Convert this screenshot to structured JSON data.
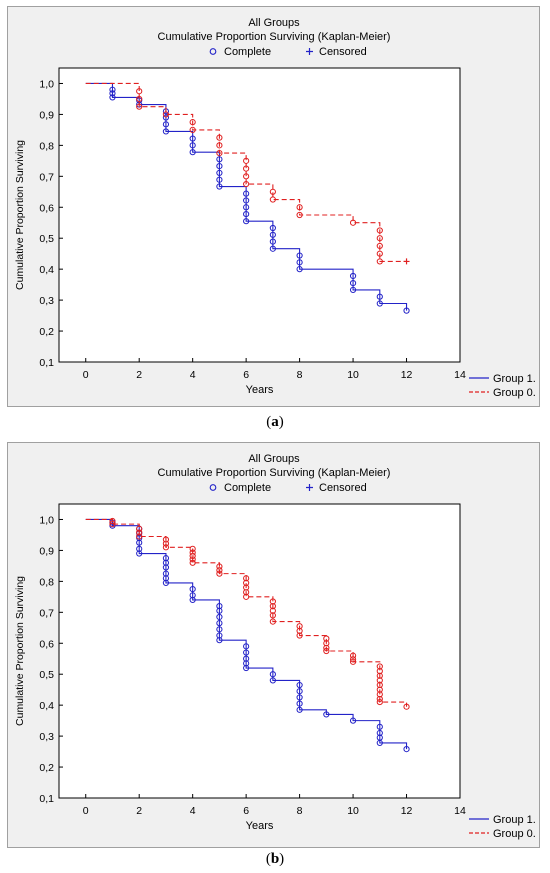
{
  "captions": {
    "a": "a",
    "b": "b"
  },
  "colors": {
    "group1": "#2323c8",
    "group0": "#e02020"
  },
  "chart_data": [
    {
      "type": "line",
      "title": "All Groups",
      "subtitle": "Cumulative Proportion Surviving (Kaplan-Meier)",
      "marker_legend": [
        {
          "label": "Complete",
          "symbol": "circle"
        },
        {
          "label": "Censored",
          "symbol": "plus"
        }
      ],
      "xlabel": "Years",
      "ylabel": "Cumulative Proportion Surviving",
      "xlim": [
        -1,
        14
      ],
      "ylim": [
        0.1,
        1.05
      ],
      "xticks": [
        0,
        2,
        4,
        6,
        8,
        10,
        12,
        14
      ],
      "yticks": [
        1.0,
        0.9,
        0.8,
        0.7,
        0.6,
        0.5,
        0.4,
        0.3,
        0.2,
        0.1
      ],
      "ytick_labels": [
        "1,0",
        "0,9",
        "0,8",
        "0,7",
        "0,6",
        "0,5",
        "0,4",
        "0,3",
        "0,2",
        "0,1"
      ],
      "legend_position": "bottom-right",
      "series": [
        {
          "name": "Group 1.",
          "style": "solid",
          "steps": [
            [
              0,
              1.0
            ],
            [
              1,
              0.955
            ],
            [
              2,
              0.932
            ],
            [
              3,
              0.845
            ],
            [
              4,
              0.778
            ],
            [
              5,
              0.667
            ],
            [
              6,
              0.555
            ],
            [
              7,
              0.466
            ],
            [
              8,
              0.4
            ],
            [
              10,
              0.333
            ],
            [
              11,
              0.289
            ],
            [
              12,
              0.266
            ]
          ],
          "complete_markers": [
            [
              1,
              0.98
            ],
            [
              1,
              0.968
            ],
            [
              1,
              0.955
            ],
            [
              2,
              0.945
            ],
            [
              2,
              0.932
            ],
            [
              3,
              0.91
            ],
            [
              3,
              0.89
            ],
            [
              3,
              0.868
            ],
            [
              3,
              0.845
            ],
            [
              4,
              0.822
            ],
            [
              4,
              0.8
            ],
            [
              4,
              0.778
            ],
            [
              5,
              0.755
            ],
            [
              5,
              0.733
            ],
            [
              5,
              0.711
            ],
            [
              5,
              0.689
            ],
            [
              5,
              0.667
            ],
            [
              6,
              0.644
            ],
            [
              6,
              0.622
            ],
            [
              6,
              0.6
            ],
            [
              6,
              0.578
            ],
            [
              6,
              0.555
            ],
            [
              7,
              0.533
            ],
            [
              7,
              0.511
            ],
            [
              7,
              0.489
            ],
            [
              7,
              0.466
            ],
            [
              8,
              0.444
            ],
            [
              8,
              0.422
            ],
            [
              8,
              0.4
            ],
            [
              10,
              0.378
            ],
            [
              10,
              0.355
            ],
            [
              10,
              0.333
            ],
            [
              11,
              0.311
            ],
            [
              11,
              0.289
            ],
            [
              12,
              0.266
            ]
          ],
          "censored_markers": []
        },
        {
          "name": "Group 0.",
          "style": "dashed",
          "steps": [
            [
              0,
              1.0
            ],
            [
              2,
              0.925
            ],
            [
              3,
              0.9
            ],
            [
              4,
              0.85
            ],
            [
              5,
              0.775
            ],
            [
              6,
              0.675
            ],
            [
              7,
              0.625
            ],
            [
              8,
              0.575
            ],
            [
              10,
              0.55
            ],
            [
              11,
              0.425
            ],
            [
              12,
              0.425
            ]
          ],
          "complete_markers": [
            [
              2,
              0.975
            ],
            [
              2,
              0.95
            ],
            [
              2,
              0.925
            ],
            [
              3,
              0.9
            ],
            [
              4,
              0.875
            ],
            [
              4,
              0.85
            ],
            [
              5,
              0.825
            ],
            [
              5,
              0.8
            ],
            [
              5,
              0.775
            ],
            [
              6,
              0.75
            ],
            [
              6,
              0.725
            ],
            [
              6,
              0.7
            ],
            [
              6,
              0.675
            ],
            [
              7,
              0.65
            ],
            [
              7,
              0.625
            ],
            [
              8,
              0.6
            ],
            [
              8,
              0.575
            ],
            [
              10,
              0.55
            ],
            [
              11,
              0.525
            ],
            [
              11,
              0.5
            ],
            [
              11,
              0.475
            ],
            [
              11,
              0.45
            ],
            [
              11,
              0.425
            ]
          ],
          "censored_markers": [
            [
              12,
              0.425
            ]
          ]
        }
      ]
    },
    {
      "type": "line",
      "title": "All Groups",
      "subtitle": "Cumulative Proportion Surviving (Kaplan-Meier)",
      "marker_legend": [
        {
          "label": "Complete",
          "symbol": "circle"
        },
        {
          "label": "Censored",
          "symbol": "plus"
        }
      ],
      "xlabel": "Years",
      "ylabel": "Cumulative Proportion Surviving",
      "xlim": [
        -1,
        14
      ],
      "ylim": [
        0.1,
        1.05
      ],
      "xticks": [
        0,
        2,
        4,
        6,
        8,
        10,
        12,
        14
      ],
      "yticks": [
        1.0,
        0.9,
        0.8,
        0.7,
        0.6,
        0.5,
        0.4,
        0.3,
        0.2,
        0.1
      ],
      "ytick_labels": [
        "1,0",
        "0,9",
        "0,8",
        "0,7",
        "0,6",
        "0,5",
        "0,4",
        "0,3",
        "0,2",
        "0,1"
      ],
      "legend_position": "bottom-right",
      "series": [
        {
          "name": "Group 1.",
          "style": "solid",
          "steps": [
            [
              0,
              1.0
            ],
            [
              1,
              0.98
            ],
            [
              2,
              0.89
            ],
            [
              3,
              0.795
            ],
            [
              4,
              0.74
            ],
            [
              5,
              0.61
            ],
            [
              6,
              0.52
            ],
            [
              7,
              0.48
            ],
            [
              8,
              0.385
            ],
            [
              9,
              0.37
            ],
            [
              10,
              0.35
            ],
            [
              11,
              0.278
            ],
            [
              12,
              0.258
            ]
          ],
          "complete_markers": [
            [
              1,
              0.99
            ],
            [
              1,
              0.98
            ],
            [
              2,
              0.97
            ],
            [
              2,
              0.955
            ],
            [
              2,
              0.94
            ],
            [
              2,
              0.925
            ],
            [
              2,
              0.905
            ],
            [
              2,
              0.89
            ],
            [
              3,
              0.875
            ],
            [
              3,
              0.86
            ],
            [
              3,
              0.845
            ],
            [
              3,
              0.825
            ],
            [
              3,
              0.81
            ],
            [
              3,
              0.795
            ],
            [
              4,
              0.775
            ],
            [
              4,
              0.755
            ],
            [
              4,
              0.74
            ],
            [
              5,
              0.72
            ],
            [
              5,
              0.705
            ],
            [
              5,
              0.685
            ],
            [
              5,
              0.665
            ],
            [
              5,
              0.645
            ],
            [
              5,
              0.625
            ],
            [
              5,
              0.61
            ],
            [
              6,
              0.59
            ],
            [
              6,
              0.57
            ],
            [
              6,
              0.55
            ],
            [
              6,
              0.535
            ],
            [
              6,
              0.52
            ],
            [
              7,
              0.5
            ],
            [
              7,
              0.48
            ],
            [
              8,
              0.465
            ],
            [
              8,
              0.445
            ],
            [
              8,
              0.425
            ],
            [
              8,
              0.405
            ],
            [
              8,
              0.385
            ],
            [
              9,
              0.37
            ],
            [
              10,
              0.35
            ],
            [
              11,
              0.33
            ],
            [
              11,
              0.31
            ],
            [
              11,
              0.295
            ],
            [
              11,
              0.278
            ],
            [
              12,
              0.258
            ]
          ],
          "censored_markers": []
        },
        {
          "name": "Group 0.",
          "style": "dashed",
          "steps": [
            [
              0,
              1.0
            ],
            [
              1,
              0.985
            ],
            [
              2,
              0.945
            ],
            [
              3,
              0.91
            ],
            [
              4,
              0.86
            ],
            [
              5,
              0.825
            ],
            [
              6,
              0.75
            ],
            [
              7,
              0.67
            ],
            [
              8,
              0.625
            ],
            [
              9,
              0.575
            ],
            [
              10,
              0.54
            ],
            [
              11,
              0.41
            ],
            [
              12,
              0.395
            ]
          ],
          "complete_markers": [
            [
              1,
              0.995
            ],
            [
              1,
              0.985
            ],
            [
              2,
              0.97
            ],
            [
              2,
              0.958
            ],
            [
              2,
              0.945
            ],
            [
              3,
              0.935
            ],
            [
              3,
              0.922
            ],
            [
              3,
              0.91
            ],
            [
              4,
              0.905
            ],
            [
              4,
              0.893
            ],
            [
              4,
              0.882
            ],
            [
              4,
              0.871
            ],
            [
              4,
              0.86
            ],
            [
              5,
              0.848
            ],
            [
              5,
              0.836
            ],
            [
              5,
              0.825
            ],
            [
              6,
              0.81
            ],
            [
              6,
              0.795
            ],
            [
              6,
              0.78
            ],
            [
              6,
              0.765
            ],
            [
              6,
              0.75
            ],
            [
              7,
              0.735
            ],
            [
              7,
              0.72
            ],
            [
              7,
              0.705
            ],
            [
              7,
              0.69
            ],
            [
              7,
              0.67
            ],
            [
              8,
              0.655
            ],
            [
              8,
              0.64
            ],
            [
              8,
              0.625
            ],
            [
              9,
              0.615
            ],
            [
              9,
              0.6
            ],
            [
              9,
              0.585
            ],
            [
              9,
              0.575
            ],
            [
              10,
              0.56
            ],
            [
              10,
              0.548
            ],
            [
              10,
              0.54
            ],
            [
              11,
              0.525
            ],
            [
              11,
              0.51
            ],
            [
              11,
              0.495
            ],
            [
              11,
              0.48
            ],
            [
              11,
              0.465
            ],
            [
              11,
              0.45
            ],
            [
              11,
              0.435
            ],
            [
              11,
              0.42
            ],
            [
              11,
              0.41
            ],
            [
              12,
              0.395
            ]
          ],
          "censored_markers": []
        }
      ]
    }
  ]
}
